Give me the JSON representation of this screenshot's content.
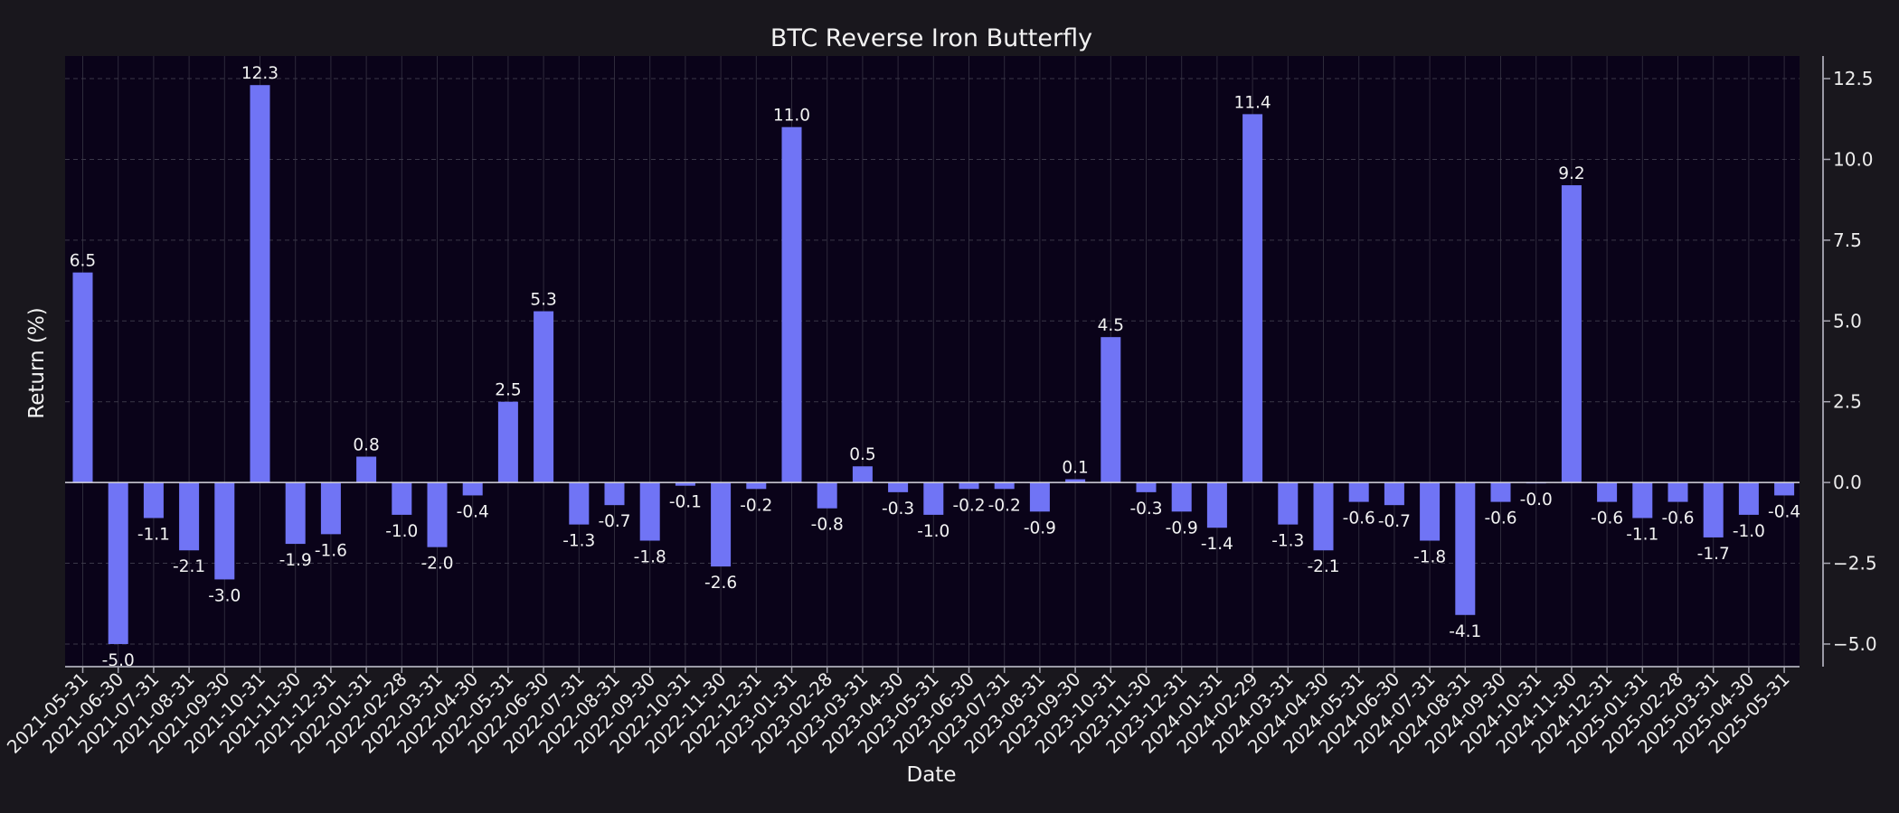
{
  "chart_data": {
    "type": "bar",
    "title": "BTC Reverse Iron Butterfly",
    "xlabel": "Date",
    "ylabel": "Return (%)",
    "ylim": [
      -5.7,
      13.2
    ],
    "yticks": [
      -5.0,
      -2.5,
      0.0,
      2.5,
      5.0,
      7.5,
      10.0,
      12.5
    ],
    "ytick_labels": [
      "−5.0",
      "−2.5",
      "0.0",
      "2.5",
      "5.0",
      "7.5",
      "10.0",
      "12.5"
    ],
    "y_axis_side": "right",
    "grid": true,
    "legend": "none",
    "bar_color": "#7074f5",
    "categories": [
      "2021-05-31",
      "2021-06-30",
      "2021-07-31",
      "2021-08-31",
      "2021-09-30",
      "2021-10-31",
      "2021-11-30",
      "2021-12-31",
      "2022-01-31",
      "2022-02-28",
      "2022-03-31",
      "2022-04-30",
      "2022-05-31",
      "2022-06-30",
      "2022-07-31",
      "2022-08-31",
      "2022-09-30",
      "2022-10-31",
      "2022-11-30",
      "2022-12-31",
      "2023-01-31",
      "2023-02-28",
      "2023-03-31",
      "2023-04-30",
      "2023-05-31",
      "2023-06-30",
      "2023-07-31",
      "2023-08-31",
      "2023-09-30",
      "2023-10-31",
      "2023-11-30",
      "2023-12-31",
      "2024-01-31",
      "2024-02-29",
      "2024-03-31",
      "2024-04-30",
      "2024-05-31",
      "2024-06-30",
      "2024-07-31",
      "2024-08-31",
      "2024-09-30",
      "2024-10-31",
      "2024-11-30",
      "2024-12-31",
      "2025-01-31",
      "2025-02-28",
      "2025-03-31",
      "2025-04-30",
      "2025-05-31"
    ],
    "values": [
      6.5,
      -5.0,
      -1.1,
      -2.1,
      -3.0,
      12.3,
      -1.9,
      -1.6,
      0.8,
      -1.0,
      -2.0,
      -0.4,
      2.5,
      5.3,
      -1.3,
      -0.7,
      -1.8,
      -0.1,
      -2.6,
      -0.2,
      11.0,
      -0.8,
      0.5,
      -0.3,
      -1.0,
      -0.2,
      -0.2,
      -0.9,
      0.1,
      4.5,
      -0.3,
      -0.9,
      -1.4,
      11.4,
      -1.3,
      -2.1,
      -0.6,
      -0.7,
      -1.8,
      -4.1,
      -0.6,
      -0.02,
      9.2,
      -0.6,
      -1.1,
      -0.6,
      -1.7,
      -1.0,
      -0.4
    ],
    "data_labels": [
      "6.5",
      "-5.0",
      "-1.1",
      "-2.1",
      "-3.0",
      "12.3",
      "-1.9",
      "-1.6",
      "0.8",
      "-1.0",
      "-2.0",
      "-0.4",
      "2.5",
      "5.3",
      "-1.3",
      "-0.7",
      "-1.8",
      "-0.1",
      "-2.6",
      "-0.2",
      "11.0",
      "-0.8",
      "0.5",
      "-0.3",
      "-1.0",
      "-0.2",
      "-0.2",
      "-0.9",
      "0.1",
      "4.5",
      "-0.3",
      "-0.9",
      "-1.4",
      "11.4",
      "-1.3",
      "-2.1",
      "-0.6",
      "-0.7",
      "-1.8",
      "-4.1",
      "-0.6",
      "-0.0",
      "9.2",
      "-0.6",
      "-1.1",
      "-0.6",
      "-1.7",
      "-1.0",
      "-0.4"
    ]
  }
}
